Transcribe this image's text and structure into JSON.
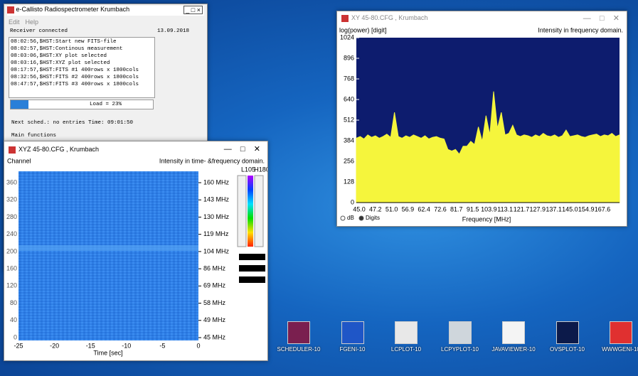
{
  "callisto": {
    "title": "e-Callisto Radiospectrometer Krumbach",
    "menu": [
      "Edit",
      "Help"
    ],
    "status": "Receiver connected",
    "date": "13.09.2018",
    "log": [
      "08:02:56,$HST:Start new FITS-file",
      "08:02:57,$HST:Continous measurement",
      "08:03:06,$HST:XY plot selected",
      "08:03:16,$HST:XYZ plot selected",
      "08:17:57,$HST:FITS #1 400rows x 1800cols",
      "08:32:56,$HST:FITS #2 400rows x 1800cols",
      "08:47:57,$HST:FITS #3 400rows x 1800cols"
    ],
    "load": "Load = 23%",
    "schedule": "Next sched.: no entries  Time: 09:01:50",
    "main": "Main functions"
  },
  "chart_data": {
    "type": "area",
    "title": "XY 45-80.CFG , Krumbach",
    "y_label": "log(power) [digit]",
    "subtitle": "Intensity in frequency domain.",
    "x_label": "Frequency [MHz]",
    "x_tick_labels": [
      "45.0",
      "47.2",
      "51.0",
      "56.9",
      "62.4",
      "72.6",
      "81.7",
      "91.5",
      "103.9",
      "113.1",
      "121.7",
      "127.9",
      "137.1",
      "145.0",
      "154.9",
      "167.6"
    ],
    "ylim": [
      0,
      1024
    ],
    "yticks": [
      0,
      128,
      256,
      384,
      512,
      640,
      768,
      896,
      1024
    ],
    "color": "#f5f53c",
    "background": "#0d1c6e",
    "radio": [
      "dB",
      "Digits"
    ],
    "values": [
      400,
      410,
      395,
      420,
      405,
      415,
      400,
      410,
      425,
      405,
      560,
      410,
      400,
      415,
      405,
      420,
      410,
      400,
      415,
      395,
      405,
      410,
      400,
      395,
      330,
      320,
      330,
      300,
      350,
      350,
      380,
      360,
      470,
      380,
      540,
      420,
      690,
      460,
      560,
      420,
      430,
      480,
      420,
      410,
      420,
      415,
      405,
      420,
      410,
      430,
      415,
      410,
      420,
      405,
      415,
      450,
      410,
      415,
      420,
      410,
      405,
      415,
      420,
      425,
      410,
      420,
      415,
      430,
      410,
      420
    ]
  },
  "xyz": {
    "title": "XYZ 45-80.CFG , Krumbach",
    "y_label": "Channel",
    "subtitle": "Intensity in time- &frequency domain.",
    "channels": [
      0,
      40,
      80,
      120,
      160,
      200,
      240,
      280,
      320,
      360
    ],
    "freqs": [
      "45 MHz",
      "49 MHz",
      "58 MHz",
      "69 MHz",
      "86 MHz",
      "104 MHz",
      "119 MHz",
      "130 MHz",
      "143 MHz",
      "160 MHz"
    ],
    "times": [
      -25,
      -20,
      -15,
      -10,
      -5,
      0
    ],
    "x_label": "Time [sec]",
    "low": "L105",
    "high": "H180"
  },
  "icons": [
    "SCHEDULER-10",
    "FGENI-10",
    "LCPLOT-10",
    "LCPYPLOT-10",
    "JAVAVIEWER-10",
    "OVSPLOT-10",
    "WWWGENI-10"
  ]
}
